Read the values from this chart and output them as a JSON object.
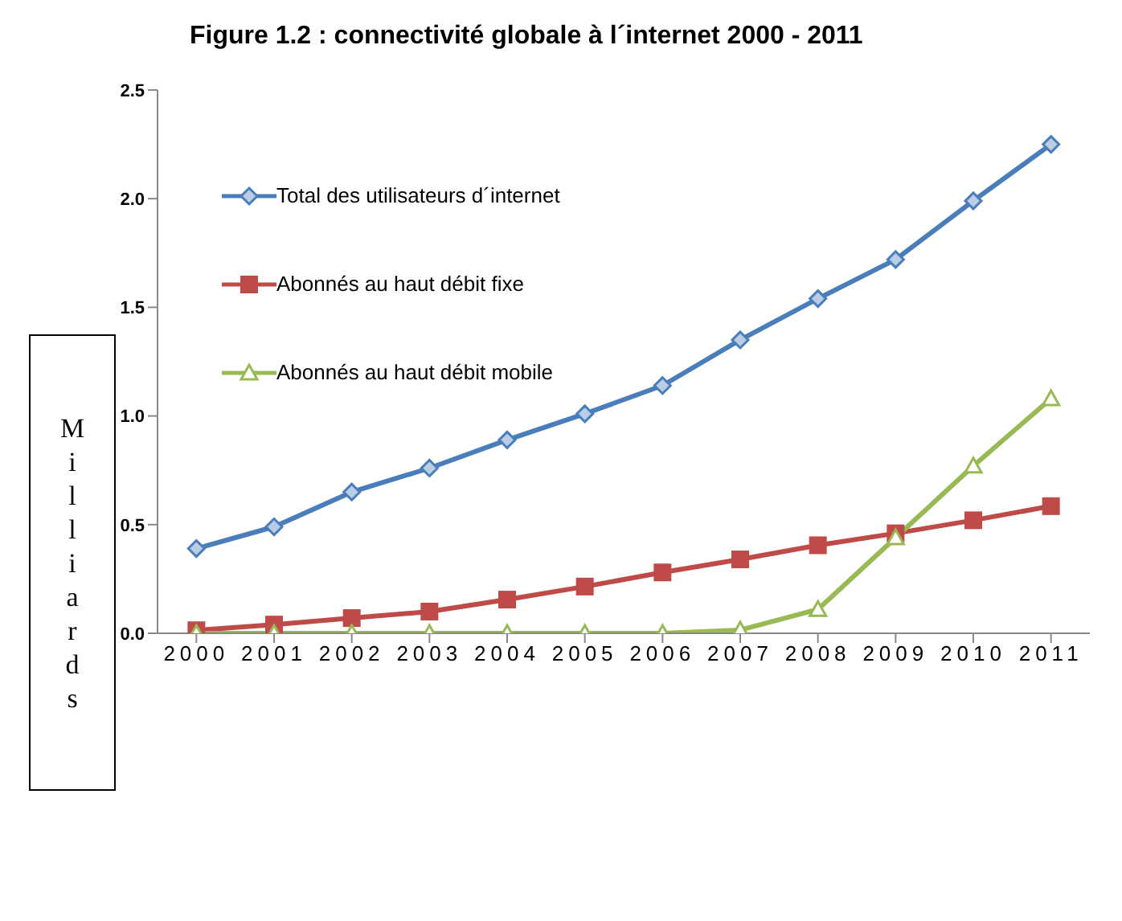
{
  "chart_data": {
    "type": "line",
    "title": "Figure 1.2 : connectivité globale à l´internet 2000 - 2011",
    "ylabel": "Milliards",
    "categories": [
      "2000",
      "2001",
      "2002",
      "2003",
      "2004",
      "2005",
      "2006",
      "2007",
      "2008",
      "2009",
      "2010",
      "2011"
    ],
    "series": [
      {
        "name": "Total des utilisateurs d´internet",
        "color": "#4a7ebb",
        "marker": "diamond",
        "values": [
          0.39,
          0.49,
          0.65,
          0.76,
          0.89,
          1.01,
          1.14,
          1.35,
          1.54,
          1.72,
          1.99,
          2.25
        ]
      },
      {
        "name": "Abonnés au haut débit fixe",
        "color": "#be4b48",
        "marker": "square",
        "values": [
          0.014,
          0.04,
          0.07,
          0.1,
          0.155,
          0.215,
          0.28,
          0.34,
          0.405,
          0.46,
          0.52,
          0.585
        ]
      },
      {
        "name": "Abonnés au haut débit mobile",
        "color": "#98b954",
        "marker": "triangle",
        "values": [
          0,
          0,
          0,
          0,
          0,
          0,
          0,
          0.015,
          0.11,
          0.44,
          0.77,
          1.08
        ]
      }
    ],
    "ylim": [
      0,
      2.5
    ],
    "yticks": [
      {
        "value": 0,
        "label": "0.0"
      },
      {
        "value": 0.5,
        "label": "0.5"
      },
      {
        "value": 1,
        "label": "1.0"
      },
      {
        "value": 1.5,
        "label": "1.5"
      },
      {
        "value": 2,
        "label": "2.0"
      },
      {
        "value": 2.5,
        "label": "2.5"
      }
    ],
    "grid": false,
    "legend": "top left",
    "line_style": "solid"
  }
}
